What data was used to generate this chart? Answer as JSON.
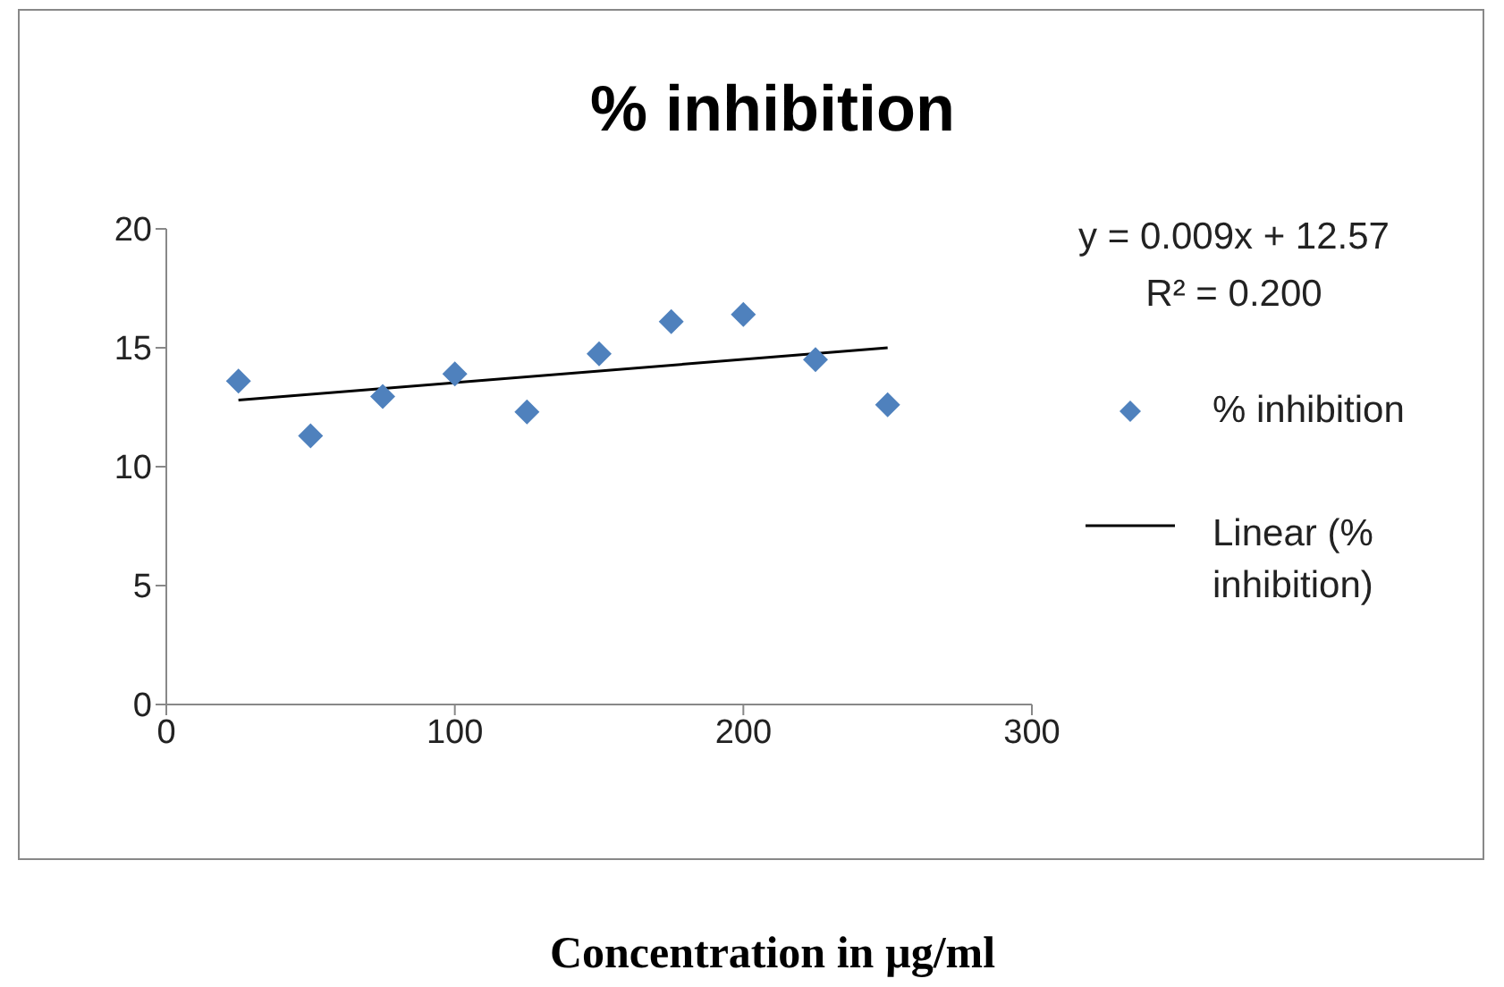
{
  "chart_data": {
    "type": "scatter",
    "title": "% inhibition",
    "xlabel": "Concentration in µg/ml",
    "annotations": [
      "y = 0.009x + 12.57",
      "R² = 0.200"
    ],
    "series": [
      {
        "name": "% inhibition",
        "color": "#4f81bd",
        "marker": "diamond",
        "x": [
          25,
          50,
          75,
          100,
          125,
          150,
          175,
          200,
          225,
          250
        ],
        "values": [
          13.6,
          11.3,
          12.95,
          13.9,
          12.3,
          14.75,
          16.1,
          16.4,
          14.5,
          12.6
        ]
      },
      {
        "name": "Linear (% inhibition)",
        "type": "line",
        "color": "#000000",
        "marker": "none",
        "line_style": "solid",
        "x": [
          25,
          250
        ],
        "values": [
          12.8,
          15.0
        ]
      }
    ],
    "xlim": [
      0,
      300
    ],
    "xticks": [
      0,
      100,
      200,
      300
    ],
    "ylim": [
      0,
      20
    ],
    "yticks": [
      0,
      5,
      10,
      15,
      20
    ],
    "grid": false,
    "legend": "right"
  }
}
